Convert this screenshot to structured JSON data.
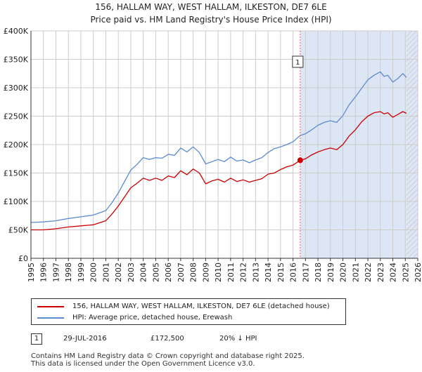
{
  "header": {
    "title_line1": "156, HALLAM WAY, WEST HALLAM, ILKESTON, DE7 6LE",
    "title_line2": "Price paid vs. HM Land Registry's House Price Index (HPI)"
  },
  "colors": {
    "price_line": "#cc0000",
    "hpi_line": "#5b8bd0",
    "shade": "#dce6f5",
    "grid": "#cccccc",
    "marker_line": "#e06060"
  },
  "chart_data": {
    "type": "line",
    "title": "Price paid vs. HM Land Registry's House Price Index (HPI)",
    "xlabel": "",
    "ylabel": "",
    "xlim": [
      1995,
      2026
    ],
    "ylim": [
      0,
      400000
    ],
    "x_ticks": [
      "1995",
      "1996",
      "1997",
      "1998",
      "1999",
      "2000",
      "2001",
      "2002",
      "2003",
      "2004",
      "2005",
      "2006",
      "2007",
      "2008",
      "2009",
      "2010",
      "2011",
      "2012",
      "2013",
      "2014",
      "2015",
      "2016",
      "2017",
      "2018",
      "2019",
      "2020",
      "2021",
      "2022",
      "2023",
      "2024",
      "2025",
      "2026"
    ],
    "y_ticks": [
      {
        "value": 0,
        "label": "£0"
      },
      {
        "value": 50000,
        "label": "£50K"
      },
      {
        "value": 100000,
        "label": "£100K"
      },
      {
        "value": 150000,
        "label": "£150K"
      },
      {
        "value": 200000,
        "label": "£200K"
      },
      {
        "value": 250000,
        "label": "£250K"
      },
      {
        "value": 300000,
        "label": "£300K"
      },
      {
        "value": 350000,
        "label": "£350K"
      },
      {
        "value": 400000,
        "label": "£400K"
      }
    ],
    "shaded_region": {
      "from": 2016.58,
      "to": 2026
    },
    "hatched_region": {
      "from": 2025.1,
      "to": 2026
    },
    "series": [
      {
        "name": "156, HALLAM WAY, WEST HALLAM, ILKESTON, DE7 6LE (detached house)",
        "color": "#cc0000",
        "x": [
          1995,
          1996,
          1997,
          1998,
          1999,
          2000,
          2001,
          2001.5,
          2002,
          2002.5,
          2003,
          2003.5,
          2004,
          2004.5,
          2005,
          2005.5,
          2006,
          2006.5,
          2007,
          2007.5,
          2008,
          2008.5,
          2009,
          2009.5,
          2010,
          2010.5,
          2011,
          2011.5,
          2012,
          2012.5,
          2013,
          2013.5,
          2014,
          2014.5,
          2015,
          2015.5,
          2016,
          2016.58,
          2017,
          2017.5,
          2018,
          2018.5,
          2019,
          2019.5,
          2020,
          2020.5,
          2021,
          2021.5,
          2022,
          2022.5,
          2023,
          2023.3,
          2023.6,
          2024,
          2024.4,
          2024.8,
          2025.1
        ],
        "values": [
          50000,
          50000,
          52000,
          55000,
          57000,
          59000,
          66000,
          78000,
          92000,
          108000,
          124000,
          132000,
          141000,
          137000,
          141000,
          137000,
          145000,
          142000,
          154000,
          147000,
          157000,
          150000,
          131000,
          136000,
          139000,
          134000,
          141000,
          135000,
          138000,
          134000,
          137000,
          140000,
          148000,
          150000,
          156000,
          161000,
          164000,
          172500,
          175000,
          182000,
          187000,
          191000,
          194000,
          191000,
          200000,
          215000,
          226000,
          240000,
          250000,
          256000,
          258000,
          254000,
          256000,
          248000,
          253000,
          258000,
          255000
        ]
      },
      {
        "name": "HPI: Average price, detached house, Erewash",
        "color": "#5b8bd0",
        "x": [
          1995,
          1996,
          1997,
          1998,
          1999,
          2000,
          2001,
          2001.5,
          2002,
          2002.5,
          2003,
          2003.5,
          2004,
          2004.5,
          2005,
          2005.5,
          2006,
          2006.5,
          2007,
          2007.5,
          2008,
          2008.5,
          2009,
          2009.5,
          2010,
          2010.5,
          2011,
          2011.5,
          2012,
          2012.5,
          2013,
          2013.5,
          2014,
          2014.5,
          2015,
          2015.5,
          2016,
          2016.58,
          2017,
          2017.5,
          2018,
          2018.5,
          2019,
          2019.5,
          2020,
          2020.5,
          2021,
          2021.5,
          2022,
          2022.5,
          2023,
          2023.3,
          2023.6,
          2024,
          2024.4,
          2024.8,
          2025.1
        ],
        "values": [
          63000,
          64000,
          66000,
          70000,
          73000,
          76000,
          84000,
          98000,
          115000,
          135000,
          155000,
          165000,
          177000,
          174000,
          177000,
          176000,
          183000,
          181000,
          194000,
          187000,
          196000,
          186000,
          166000,
          170000,
          174000,
          170000,
          178000,
          171000,
          173000,
          168000,
          173000,
          177000,
          186000,
          193000,
          196000,
          200000,
          205000,
          216000,
          219000,
          226000,
          234000,
          239000,
          242000,
          239000,
          251000,
          270000,
          284000,
          299000,
          314000,
          322000,
          328000,
          320000,
          322000,
          310000,
          316000,
          325000,
          318000
        ]
      }
    ],
    "annotations": [
      {
        "label": "1",
        "x": 2016.58,
        "price": 172500
      }
    ]
  },
  "legend": {
    "entries": [
      {
        "label": "156, HALLAM WAY, WEST HALLAM, ILKESTON, DE7 6LE (detached house)",
        "color": "#cc0000"
      },
      {
        "label": "HPI: Average price, detached house, Erewash",
        "color": "#5b8bd0"
      }
    ]
  },
  "transactions": [
    {
      "badge": "1",
      "date": "29-JUL-2016",
      "price": "£172,500",
      "hpi": "20% ↓ HPI"
    }
  ],
  "footer": {
    "line1": "Contains HM Land Registry data © Crown copyright and database right 2025.",
    "line2": "This data is licensed under the Open Government Licence v3.0."
  }
}
